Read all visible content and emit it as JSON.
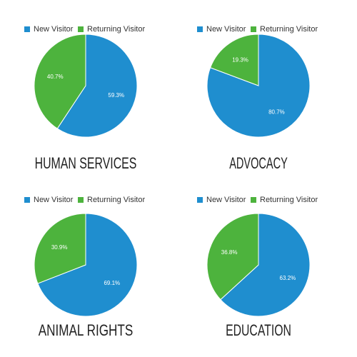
{
  "colors": {
    "new_visitor": "#1f8ecf",
    "returning_visitor": "#4db33d",
    "label_text": "#ffffff",
    "title_text": "#222222",
    "legend_text": "#333333"
  },
  "legend_labels": [
    "New Visitor",
    "Returning Visitor"
  ],
  "chart_data": [
    {
      "type": "pie",
      "title": "HUMAN SERVICES",
      "series": [
        {
          "name": "New Visitor",
          "value": 59.3,
          "label": "59.3%"
        },
        {
          "name": "Returning Visitor",
          "value": 40.7,
          "label": "40.7%"
        }
      ],
      "legend": "top"
    },
    {
      "type": "pie",
      "title": "ADVOCACY",
      "series": [
        {
          "name": "New Visitor",
          "value": 80.7,
          "label": "80.7%"
        },
        {
          "name": "Returning Visitor",
          "value": 19.3,
          "label": "19.3%"
        }
      ],
      "legend": "top"
    },
    {
      "type": "pie",
      "title": "ANIMAL RIGHTS",
      "series": [
        {
          "name": "New Visitor",
          "value": 69.1,
          "label": "69.1%"
        },
        {
          "name": "Returning Visitor",
          "value": 30.9,
          "label": "30.9%"
        }
      ],
      "legend": "top"
    },
    {
      "type": "pie",
      "title": "EDUCATION",
      "series": [
        {
          "name": "New Visitor",
          "value": 63.2,
          "label": "63.2%"
        },
        {
          "name": "Returning Visitor",
          "value": 36.8,
          "label": "36.8%"
        }
      ],
      "legend": "top"
    }
  ]
}
